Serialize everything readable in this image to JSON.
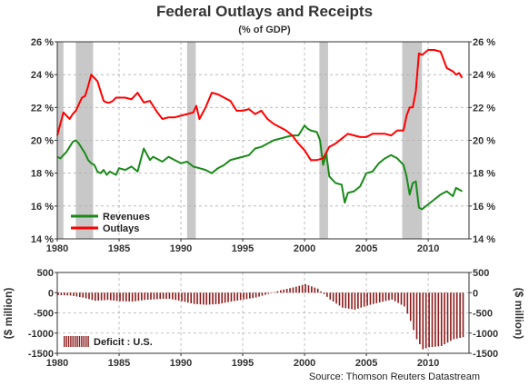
{
  "chart_data": [
    {
      "type": "line",
      "title": "Federal Outlays and Receipts",
      "subtitle": "(% of GDP)",
      "xlim": [
        1980,
        2013.3
      ],
      "ylim": [
        14,
        26
      ],
      "yticks": [
        "14 %",
        "16 %",
        "18 %",
        "20 %",
        "22 %",
        "24 %",
        "26 %"
      ],
      "xticks": [
        "1980",
        "1985",
        "1990",
        "1995",
        "2000",
        "2005",
        "2010"
      ],
      "recessions": [
        [
          1980.0,
          1980.5
        ],
        [
          1981.5,
          1982.9
        ],
        [
          1990.5,
          1991.2
        ],
        [
          2001.2,
          2001.9
        ],
        [
          2007.9,
          2009.5
        ]
      ],
      "legend_position": "bottom-left",
      "grid": true,
      "colors": {
        "Revenues": "#1a8a1a",
        "Outlays": "#ff0000",
        "recession": "#c8c8c8",
        "grid": "#b0b0b0"
      },
      "series": [
        {
          "name": "Revenues",
          "x": [
            1980.0,
            1980.25,
            1980.5,
            1980.75,
            1981.0,
            1981.25,
            1981.5,
            1981.75,
            1982.0,
            1982.25,
            1982.5,
            1982.75,
            1983.0,
            1983.25,
            1983.5,
            1983.75,
            1984.0,
            1984.25,
            1984.5,
            1984.75,
            1985.0,
            1985.5,
            1986.0,
            1986.5,
            1987.0,
            1987.5,
            1987.75,
            1988.0,
            1988.5,
            1989.0,
            1989.5,
            1990.0,
            1990.5,
            1991.0,
            1991.5,
            1992.0,
            1992.5,
            1993.0,
            1993.5,
            1994.0,
            1994.5,
            1995.0,
            1995.5,
            1996.0,
            1996.5,
            1997.0,
            1997.5,
            1998.0,
            1998.5,
            1999.0,
            1999.5,
            2000.0,
            2000.25,
            2000.5,
            2001.0,
            2001.25,
            2001.5,
            2001.75,
            2002.0,
            2002.5,
            2003.0,
            2003.25,
            2003.5,
            2004.0,
            2004.5,
            2005.0,
            2005.5,
            2006.0,
            2006.5,
            2007.0,
            2007.5,
            2008.0,
            2008.25,
            2008.5,
            2008.75,
            2009.0,
            2009.25,
            2009.5,
            2010.0,
            2010.5,
            2011.0,
            2011.5,
            2012.0,
            2012.25,
            2012.5,
            2012.75
          ],
          "values": [
            19.0,
            18.9,
            19.1,
            19.3,
            19.6,
            19.9,
            20.0,
            19.8,
            19.5,
            19.2,
            18.8,
            18.6,
            18.5,
            18.1,
            18.0,
            18.2,
            17.9,
            18.1,
            18.0,
            17.9,
            18.3,
            18.2,
            18.4,
            18.1,
            19.5,
            18.8,
            19.0,
            18.9,
            18.7,
            19.0,
            18.8,
            18.6,
            18.7,
            18.4,
            18.3,
            18.2,
            18.0,
            18.3,
            18.5,
            18.8,
            18.9,
            19.0,
            19.1,
            19.5,
            19.6,
            19.8,
            20.0,
            20.1,
            20.2,
            20.3,
            20.3,
            20.9,
            20.7,
            20.6,
            20.5,
            20.0,
            18.5,
            19.2,
            17.8,
            17.4,
            17.3,
            16.2,
            16.8,
            16.9,
            17.2,
            18.0,
            18.1,
            18.6,
            18.9,
            19.1,
            18.9,
            18.5,
            17.8,
            16.7,
            17.4,
            17.5,
            15.9,
            15.8,
            16.1,
            16.4,
            16.7,
            16.9,
            16.6,
            17.1,
            17.0,
            16.9
          ]
        },
        {
          "name": "Outlays",
          "x": [
            1980.0,
            1980.25,
            1980.5,
            1980.75,
            1981.0,
            1981.25,
            1981.5,
            1981.75,
            1982.0,
            1982.25,
            1982.5,
            1982.75,
            1983.0,
            1983.25,
            1983.5,
            1983.75,
            1984.0,
            1984.25,
            1984.5,
            1984.75,
            1985.0,
            1985.5,
            1986.0,
            1986.5,
            1987.0,
            1987.5,
            1988.0,
            1988.5,
            1989.0,
            1989.5,
            1990.0,
            1990.5,
            1991.0,
            1991.25,
            1991.5,
            1992.0,
            1992.5,
            1993.0,
            1993.5,
            1994.0,
            1994.5,
            1995.0,
            1995.5,
            1996.0,
            1996.5,
            1997.0,
            1997.5,
            1998.0,
            1998.5,
            1999.0,
            1999.5,
            2000.0,
            2000.5,
            2001.0,
            2001.5,
            2002.0,
            2002.5,
            2003.0,
            2003.5,
            2004.0,
            2004.5,
            2005.0,
            2005.5,
            2006.0,
            2006.5,
            2007.0,
            2007.5,
            2008.0,
            2008.25,
            2008.5,
            2008.75,
            2009.0,
            2009.25,
            2009.5,
            2010.0,
            2010.5,
            2011.0,
            2011.5,
            2012.0,
            2012.25,
            2012.5,
            2012.75
          ],
          "values": [
            20.3,
            21.0,
            21.7,
            21.5,
            21.3,
            21.6,
            21.8,
            22.2,
            22.6,
            22.7,
            23.3,
            24.0,
            23.8,
            23.6,
            23.0,
            22.4,
            22.3,
            22.3,
            22.4,
            22.6,
            22.6,
            22.6,
            22.5,
            22.9,
            22.3,
            22.4,
            21.8,
            21.3,
            21.4,
            21.4,
            21.5,
            21.6,
            21.7,
            22.1,
            21.3,
            22.0,
            22.9,
            22.8,
            22.6,
            22.4,
            21.8,
            21.8,
            21.9,
            21.6,
            21.8,
            21.3,
            21.0,
            20.8,
            20.6,
            20.3,
            19.8,
            19.4,
            18.8,
            18.8,
            18.9,
            19.6,
            19.8,
            20.1,
            20.4,
            20.3,
            20.2,
            20.2,
            20.4,
            20.4,
            20.4,
            20.3,
            20.6,
            20.6,
            21.5,
            22.0,
            22.0,
            23.0,
            25.3,
            25.2,
            25.5,
            25.5,
            25.4,
            24.4,
            24.2,
            24.0,
            24.1,
            23.8
          ]
        }
      ]
    },
    {
      "type": "bar",
      "ylabel": "($ million)",
      "ylim": [
        -1500,
        500
      ],
      "yticks": [
        "500",
        "0",
        "-500",
        "-1000",
        "-1500"
      ],
      "xticks": [
        "1980",
        "1985",
        "1990",
        "1995",
        "2000",
        "2005",
        "2010"
      ],
      "xlim": [
        1980,
        2013.3
      ],
      "legend_position": "bottom-left",
      "grid": true,
      "colors": {
        "bars": "#8b1a1a",
        "grid": "#b0b0b0"
      },
      "source": "Source:  Thomson  Reuters  Datastream",
      "series": [
        {
          "name": "Deficit : U.S.",
          "anchors_x": [
            1980.0,
            1981.0,
            1982.0,
            1983.0,
            1984.0,
            1985.0,
            1986.0,
            1987.0,
            1988.0,
            1989.0,
            1990.0,
            1991.0,
            1992.0,
            1993.0,
            1994.0,
            1995.0,
            1996.0,
            1997.0,
            1998.0,
            1999.0,
            2000.0,
            2001.0,
            2002.0,
            2003.0,
            2004.0,
            2005.0,
            2006.0,
            2007.0,
            2008.0,
            2008.5,
            2009.0,
            2009.5,
            2010.0,
            2011.0,
            2012.0,
            2012.75
          ],
          "anchors_y": [
            -60,
            -70,
            -120,
            -200,
            -180,
            -210,
            -220,
            -180,
            -160,
            -150,
            -210,
            -280,
            -300,
            -280,
            -220,
            -170,
            -120,
            -30,
            60,
            130,
            210,
            100,
            -170,
            -370,
            -420,
            -320,
            -240,
            -170,
            -340,
            -700,
            -1150,
            -1400,
            -1350,
            -1320,
            -1150,
            -1100
          ],
          "step": 0.25
        }
      ]
    }
  ]
}
